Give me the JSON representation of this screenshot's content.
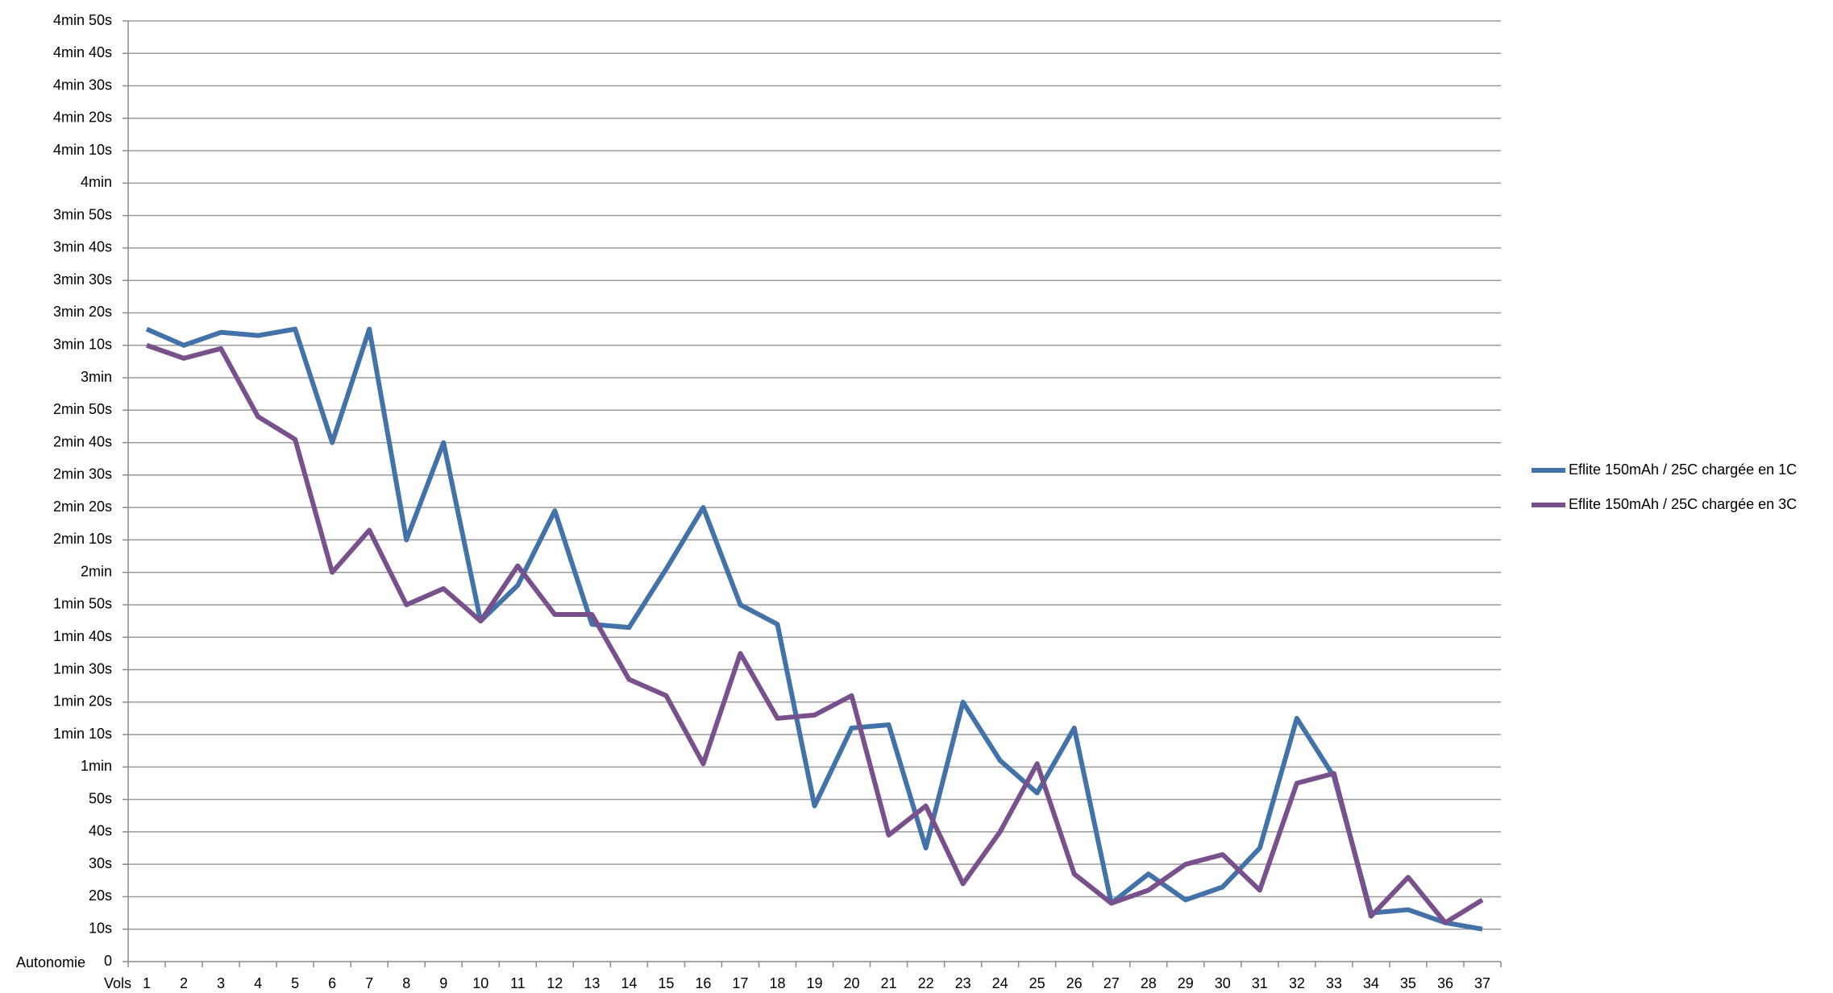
{
  "chart_data": {
    "type": "line",
    "y_label": "Autonomie",
    "x_label": "Vols",
    "categories": [
      "1",
      "2",
      "3",
      "4",
      "5",
      "6",
      "7",
      "8",
      "9",
      "10",
      "11",
      "12",
      "13",
      "14",
      "15",
      "16",
      "17",
      "18",
      "19",
      "20",
      "21",
      "22",
      "23",
      "24",
      "25",
      "26",
      "27",
      "28",
      "29",
      "30",
      "31",
      "32",
      "33",
      "34",
      "35",
      "36",
      "37"
    ],
    "series": [
      {
        "name": "Eflite 150mAh / 25C chargée en 1C",
        "color": "#4272a8",
        "values": [
          195,
          190,
          194,
          193,
          195,
          160,
          195,
          130,
          160,
          105,
          116,
          139,
          104,
          103,
          121,
          140,
          110,
          104,
          48,
          72,
          73,
          35,
          80,
          62,
          52,
          72,
          18,
          27,
          19,
          23,
          35,
          75,
          57,
          15,
          16,
          12,
          10
        ]
      },
      {
        "name": "Eflite 150mAh / 25C chargée en 3C",
        "color": "#77508c",
        "values": [
          190,
          186,
          189,
          168,
          161,
          120,
          133,
          110,
          115,
          105,
          122,
          107,
          107,
          87,
          82,
          61,
          95,
          75,
          76,
          82,
          39,
          48,
          24,
          40,
          61,
          27,
          18,
          22,
          30,
          33,
          22,
          55,
          58,
          14,
          26,
          12,
          19
        ]
      }
    ],
    "ylim": [
      0,
      290
    ],
    "yticks": [
      0,
      {
        "value": 10,
        "label": "10s"
      },
      {
        "value": 20,
        "label": "20s"
      },
      {
        "value": 30,
        "label": "30s"
      },
      {
        "value": 40,
        "label": "40s"
      },
      {
        "value": 50,
        "label": "50s"
      },
      {
        "value": 60,
        "label": "1min"
      },
      {
        "value": 70,
        "label": "1min 10s"
      },
      {
        "value": 80,
        "label": "1min 20s"
      },
      {
        "value": 90,
        "label": "1min 30s"
      },
      {
        "value": 100,
        "label": "1min 40s"
      },
      {
        "value": 110,
        "label": "1min 50s"
      },
      {
        "value": 120,
        "label": "2min"
      },
      {
        "value": 130,
        "label": "2min 10s"
      },
      {
        "value": 140,
        "label": "2min 20s"
      },
      {
        "value": 150,
        "label": "2min 30s"
      },
      {
        "value": 160,
        "label": "2min 40s"
      },
      {
        "value": 170,
        "label": "2min 50s"
      },
      {
        "value": 180,
        "label": "3min"
      },
      {
        "value": 190,
        "label": "3min 10s"
      },
      {
        "value": 200,
        "label": "3min 20s"
      },
      {
        "value": 210,
        "label": "3min 30s"
      },
      {
        "value": 220,
        "label": "3min 40s"
      },
      {
        "value": 230,
        "label": "3min 50s"
      },
      {
        "value": 240,
        "label": "4min"
      },
      {
        "value": 250,
        "label": "4min 10s"
      },
      {
        "value": 260,
        "label": "4min 20s"
      },
      {
        "value": 270,
        "label": "4min 30s"
      },
      {
        "value": 280,
        "label": "4min 40s"
      },
      {
        "value": 290,
        "label": "4min 50s"
      }
    ],
    "grid": true,
    "legend": "right"
  }
}
